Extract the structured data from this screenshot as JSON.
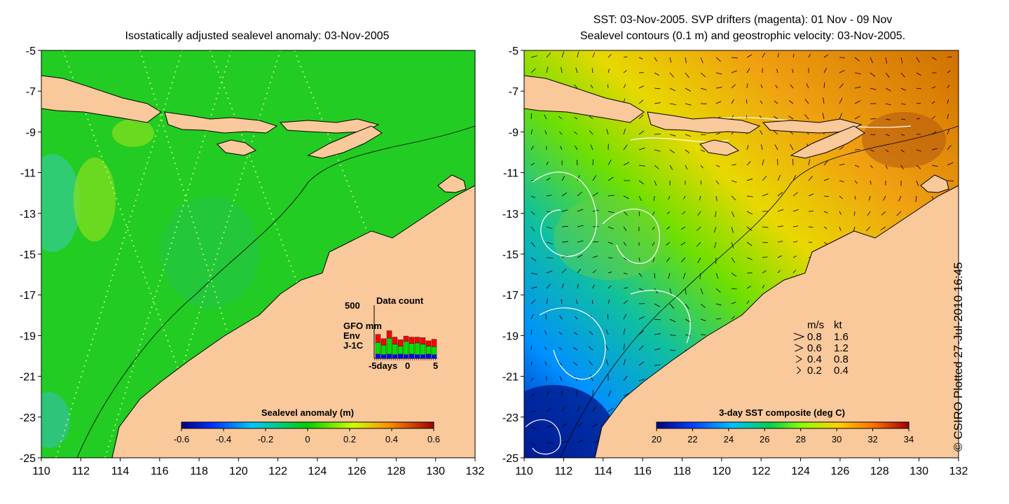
{
  "left_panel": {
    "title": "Isostatically adjusted sealevel anomaly: 03-Nov-2005",
    "colorbar": {
      "label": "Sealevel anomaly (m)",
      "ticks": [
        "-0.6",
        "-0.4",
        "-0.2",
        "0",
        "0.2",
        "0.4",
        "0.6"
      ]
    },
    "inset": {
      "title": "Data count",
      "ymax": "500",
      "legend": [
        {
          "label": "GFO mm",
          "color": "#ff0000"
        },
        {
          "label": "Env",
          "color": "#00e000"
        },
        {
          "label": "J-1C",
          "color": "#0000ff"
        }
      ],
      "xticks": [
        "-5days",
        "0",
        "5"
      ],
      "bars": [
        {
          "blue": 0.08,
          "green": 0.22,
          "red": 0.15
        },
        {
          "blue": 0.07,
          "green": 0.18,
          "red": 0.12
        },
        {
          "blue": 0.08,
          "green": 0.3,
          "red": 0.14
        },
        {
          "blue": 0.07,
          "green": 0.2,
          "red": 0.13
        },
        {
          "blue": 0.08,
          "green": 0.15,
          "red": 0.12
        },
        {
          "blue": 0.07,
          "green": 0.25,
          "red": 0.1
        },
        {
          "blue": 0.08,
          "green": 0.2,
          "red": 0.12
        },
        {
          "blue": 0.07,
          "green": 0.22,
          "red": 0.11
        },
        {
          "blue": 0.07,
          "green": 0.2,
          "red": 0.12
        },
        {
          "blue": 0.08,
          "green": 0.15,
          "red": 0.1
        },
        {
          "blue": 0.07,
          "green": 0.15,
          "red": 0.14
        }
      ]
    }
  },
  "right_panel": {
    "title_line1": "SST: 03-Nov-2005. SVP drifters (magenta): 01 Nov - 09 Nov",
    "title_line2": "Sealevel contours (0.1 m) and geostrophic velocity: 03-Nov-2005.",
    "colorbar": {
      "label": "3-day SST composite (deg C)",
      "ticks": [
        "20",
        "22",
        "24",
        "26",
        "28",
        "30",
        "32",
        "34"
      ]
    },
    "velocity_legend": {
      "header_ms": "m/s",
      "header_kt": "kt",
      "rows": [
        {
          "ms": "0.8",
          "kt": "1.6"
        },
        {
          "ms": "0.6",
          "kt": "1.2"
        },
        {
          "ms": "0.4",
          "kt": "0.8"
        },
        {
          "ms": "0.2",
          "kt": "0.4"
        }
      ]
    }
  },
  "axes": {
    "x_ticks": [
      "110",
      "112",
      "114",
      "116",
      "118",
      "120",
      "122",
      "124",
      "126",
      "128",
      "130",
      "132"
    ],
    "y_ticks": [
      "-5",
      "-7",
      "-9",
      "-11",
      "-13",
      "-15",
      "-17",
      "-19",
      "-21",
      "-23",
      "-25"
    ]
  },
  "credit": "© CSIRO Plotted 27-Jul-2010 16:45",
  "colors": {
    "land": "#f9c89b",
    "ocean_sla": "#22cc22",
    "contour": "#ffffff"
  }
}
